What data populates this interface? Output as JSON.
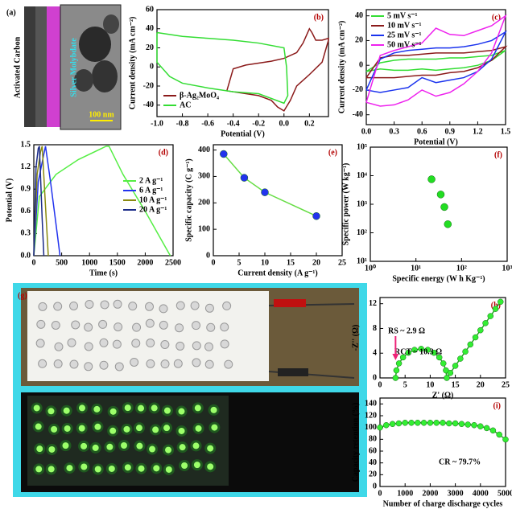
{
  "images": [
    {
      "label": "(a)",
      "texts": [
        "Activated Carbon",
        "Silver Molybdate",
        "100 nm"
      ]
    },
    {
      "label": "(g)"
    }
  ],
  "chart_data": [
    {
      "type": "line",
      "panel_label": "(b)",
      "xlabel": "Potential (V)",
      "ylabel": "Current density (mA cm⁻²)",
      "xlim": [
        -1,
        0.35
      ],
      "xticks": [
        {
          "value": -1,
          "label": "-1.0"
        },
        -0.8,
        -0.6,
        -0.4,
        -0.2,
        {
          "value": 0,
          "label": "0.0"
        },
        0.2
      ],
      "ylim": [
        -52,
        60
      ],
      "yticks": [
        -40,
        -20,
        0,
        20,
        40,
        60
      ],
      "legend": "lower left",
      "series": [
        {
          "name": "β-Ag₂MoO₄",
          "color": "#8b1a1a",
          "x": [
            -0.45,
            -0.4,
            -0.3,
            -0.2,
            -0.1,
            0,
            0.1,
            0.15,
            0.2,
            0.22,
            0.25,
            0.3,
            0.35,
            0.35,
            0.3,
            0.2,
            0.1,
            0.05,
            0,
            -0.05,
            -0.1,
            -0.2,
            -0.3,
            -0.45
          ],
          "values": [
            -25,
            -2,
            2,
            4,
            6,
            9,
            15,
            25,
            40,
            36,
            28,
            28,
            30,
            28,
            5,
            -8,
            -20,
            -35,
            -46,
            -42,
            -35,
            -30,
            -28,
            -25
          ]
        },
        {
          "name": "AC",
          "color": "#33dd33",
          "x": [
            -1,
            -0.8,
            -0.6,
            -0.4,
            -0.2,
            0,
            0.02,
            0.03,
            0,
            -0.2,
            -0.4,
            -0.6,
            -0.8,
            -0.9,
            -1,
            -1
          ],
          "values": [
            36,
            32,
            30,
            28,
            25,
            20,
            0,
            -30,
            -38,
            -28,
            -26,
            -22,
            -17,
            -10,
            5,
            36
          ]
        }
      ]
    },
    {
      "type": "line",
      "panel_label": "(c)",
      "xlabel": "Potential (V)",
      "ylabel": "Current density (mA cm⁻²)",
      "xlim": [
        0,
        1.5
      ],
      "xticks": [
        {
          "value": 0,
          "label": "0.0"
        },
        0.3,
        0.6,
        0.9,
        1.2,
        1.5
      ],
      "ylim": [
        -48,
        45
      ],
      "yticks": [
        -40,
        -20,
        0,
        20,
        40
      ],
      "legend": "upper left",
      "series": [
        {
          "name": "5 mV s⁻¹",
          "color": "#33dd33",
          "x": [
            0,
            0.15,
            0.3,
            0.45,
            0.6,
            0.75,
            0.9,
            1.05,
            1.2,
            1.35,
            1.5,
            1.35,
            1.2,
            1.05,
            0.9,
            0.75,
            0.6,
            0.45,
            0.3,
            0.15,
            0
          ],
          "values": [
            -5,
            2,
            4,
            5,
            5,
            5,
            6,
            6,
            7,
            8,
            12,
            4,
            0,
            -2,
            -3,
            -4,
            -3,
            -4,
            -4,
            -3,
            -5
          ]
        },
        {
          "name": "10 mV s⁻¹",
          "color": "#8b1a1a",
          "x": [
            0,
            0.15,
            0.3,
            0.45,
            0.6,
            0.75,
            0.9,
            1.05,
            1.2,
            1.35,
            1.5,
            1.35,
            1.2,
            1.05,
            0.9,
            0.75,
            0.6,
            0.45,
            0.3,
            0.15,
            0
          ],
          "values": [
            -10,
            6,
            8,
            8,
            9,
            10,
            10,
            10,
            11,
            12,
            15,
            4,
            -2,
            -5,
            -6,
            -8,
            -8,
            -9,
            -10,
            -10,
            -10
          ]
        },
        {
          "name": "25 mV s⁻¹",
          "color": "#1a33ee",
          "x": [
            0,
            0.15,
            0.3,
            0.45,
            0.6,
            0.75,
            0.9,
            1.05,
            1.2,
            1.35,
            1.5,
            1.35,
            1.2,
            1.05,
            0.9,
            0.75,
            0.6,
            0.45,
            0.3,
            0.15,
            0
          ],
          "values": [
            -20,
            5,
            10,
            12,
            13,
            14,
            14,
            15,
            17,
            20,
            27,
            5,
            -5,
            -10,
            -12,
            -14,
            -10,
            -18,
            -20,
            -22,
            -20
          ]
        },
        {
          "name": "50 mV s⁻¹",
          "color": "#ee22ee",
          "x": [
            0,
            0.15,
            0.3,
            0.45,
            0.6,
            0.75,
            0.9,
            1.05,
            1.2,
            1.35,
            1.5,
            1.35,
            1.2,
            1.05,
            0.9,
            0.75,
            0.6,
            0.45,
            0.3,
            0.15,
            0
          ],
          "values": [
            -30,
            8,
            12,
            15,
            18,
            30,
            25,
            24,
            28,
            32,
            40,
            10,
            -5,
            -15,
            -22,
            -25,
            -20,
            -28,
            -32,
            -33,
            -30
          ]
        }
      ]
    },
    {
      "type": "line",
      "panel_label": "(d)",
      "xlabel": "Time (s)",
      "ylabel": "Potential (V)",
      "xlim": [
        0,
        2500
      ],
      "xticks": [
        0,
        500,
        1000,
        1500,
        2000,
        2500
      ],
      "ylim": [
        0,
        1.5
      ],
      "yticks": [
        {
          "value": 0,
          "label": "0.0"
        },
        0.3,
        0.6,
        0.9,
        1.2,
        1.5
      ],
      "legend": "right",
      "series": [
        {
          "name": "2 A g⁻¹",
          "color": "#55ee44",
          "x": [
            0,
            100,
            400,
            800,
            1300,
            1350,
            1600,
            2000,
            2300,
            2450
          ],
          "values": [
            0,
            0.8,
            1.1,
            1.3,
            1.48,
            1.48,
            1.1,
            0.6,
            0.2,
            0
          ]
        },
        {
          "name": "6 A g⁻¹",
          "color": "#2233ee",
          "x": [
            0,
            80,
            160,
            210,
            300,
            420,
            470
          ],
          "values": [
            0,
            1,
            1.3,
            1.48,
            1,
            0.3,
            0
          ]
        },
        {
          "name": "10 A g⁻¹",
          "color": "#8a8a10",
          "x": [
            0,
            60,
            120,
            150,
            230,
            260
          ],
          "values": [
            0,
            1.1,
            1.4,
            1.48,
            0.4,
            0
          ]
        },
        {
          "name": "20 A g⁻¹",
          "color": "#1a2a88",
          "x": [
            0,
            40,
            80,
            100,
            150,
            180
          ],
          "values": [
            0,
            1.2,
            1.45,
            1.48,
            0.5,
            0
          ]
        }
      ]
    },
    {
      "type": "scatter",
      "panel_label": "(e)",
      "xlabel": "Current density (A g⁻¹)",
      "ylabel": "Specific capacity (C g⁻¹)",
      "xlim": [
        0,
        25
      ],
      "xticks": [
        0,
        5,
        10,
        15,
        20,
        25
      ],
      "ylim": [
        0,
        420
      ],
      "yticks": [
        0,
        100,
        200,
        300,
        400
      ],
      "series": [
        {
          "color": "#2233ee",
          "line_color": "#66dd44",
          "x": [
            2,
            6,
            10,
            20
          ],
          "values": [
            385,
            295,
            240,
            150
          ]
        }
      ]
    },
    {
      "type": "scatter",
      "panel_label": "(f)",
      "xlabel": "Specific energy (W h Kg⁻¹)",
      "ylabel": "Specific power (W kg⁻¹)",
      "log_x": true,
      "log_y": true,
      "xlim": [
        1,
        1000
      ],
      "xticks": [
        {
          "value": 1,
          "label": "10⁰"
        },
        {
          "value": 10,
          "label": "10¹"
        },
        {
          "value": 100,
          "label": "10²"
        },
        {
          "value": 1000,
          "label": "10³"
        }
      ],
      "ylim": [
        10,
        100000
      ],
      "yticks": [
        {
          "value": 10,
          "label": "10¹"
        },
        {
          "value": 100,
          "label": "10²"
        },
        {
          "value": 1000,
          "label": "10³"
        },
        {
          "value": 10000,
          "label": "10⁴"
        },
        {
          "value": 100000,
          "label": "10⁵"
        }
      ],
      "series": [
        {
          "color": "#22dd22",
          "x": [
            22,
            35,
            42,
            50
          ],
          "values": [
            7500,
            2200,
            800,
            200
          ]
        }
      ]
    },
    {
      "type": "scatter",
      "panel_label": "(h)",
      "xlabel": "Z' (Ω)",
      "ylabel": "-Z'' (Ω)",
      "xlim": [
        0,
        25
      ],
      "xticks": [
        0,
        5,
        10,
        15,
        20,
        25
      ],
      "ylim": [
        0,
        13
      ],
      "yticks": [
        0,
        4,
        8,
        12
      ],
      "annotations": [
        "RS ~ 2.9 Ω",
        "RCT ~ 10.3 Ω"
      ],
      "series": [
        {
          "color": "#33ee33",
          "line_color": "#22aa22",
          "x": [
            3.1,
            3.27,
            3.78,
            4.59,
            5.65,
            6.88,
            8.2,
            9.52,
            10.75,
            11.81,
            12.62,
            13.13,
            13.3,
            14,
            15,
            16,
            17,
            18,
            19,
            20,
            21,
            22,
            23,
            24
          ],
          "values": [
            0,
            1.22,
            2.35,
            3.32,
            4.07,
            4.54,
            4.7,
            4.54,
            4.07,
            3.32,
            2.35,
            1.22,
            0,
            0.81,
            1.96,
            3.11,
            4.26,
            5.41,
            6.56,
            7.71,
            8.86,
            10,
            11.16,
            12.31
          ]
        }
      ]
    },
    {
      "type": "scatter",
      "panel_label": "(i)",
      "xlabel": "Number of charge discharge cycles",
      "ylabel": "Capacity retention (%)",
      "xlim": [
        0,
        5000
      ],
      "xticks": [
        0,
        1000,
        2000,
        3000,
        4000,
        5000
      ],
      "ylim": [
        0,
        150
      ],
      "yticks": [
        0,
        20,
        40,
        60,
        80,
        100,
        120,
        140
      ],
      "annotations": [
        "CR ~ 79.7%"
      ],
      "series": [
        {
          "color": "#33ee33",
          "line_color": "#22aa22",
          "x": [
            0,
            250,
            500,
            750,
            1000,
            1250,
            1500,
            1750,
            2000,
            2250,
            2500,
            2750,
            3000,
            3250,
            3500,
            3750,
            4000,
            4250,
            4500,
            4750,
            5000
          ],
          "values": [
            100,
            104,
            106,
            107,
            108,
            108,
            108,
            108,
            108,
            108,
            108,
            107,
            107,
            106,
            105,
            104,
            102,
            99,
            95,
            88,
            79.7
          ]
        }
      ]
    }
  ]
}
